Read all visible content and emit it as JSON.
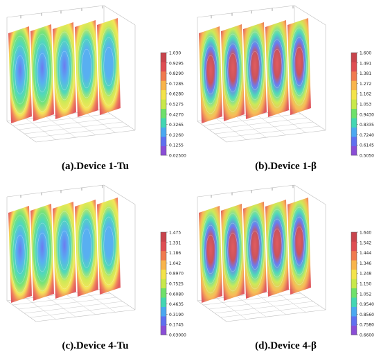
{
  "chart_data": [
    {
      "type": "heatmap",
      "title": "(a).Device 1-Tu",
      "colorbar_ticks": [
        "1.030",
        "0.9295",
        "0.8290",
        "0.7285",
        "0.6280",
        "0.5275",
        "0.4270",
        "0.3265",
        "0.2260",
        "0.1255",
        "0.02500"
      ],
      "vmin": 0.025,
      "vmax": 1.03,
      "slice_count": 5,
      "slice_pattern": "low",
      "colors": [
        "#8a4dd6",
        "#5f6ff0",
        "#4aa8f0",
        "#42d6b2",
        "#6ee06a",
        "#c8e84a",
        "#f3e34a",
        "#f8b44a",
        "#f07a4e",
        "#de4e52",
        "#c8444c"
      ]
    },
    {
      "type": "heatmap",
      "title": "(b).Device 1-β",
      "colorbar_ticks": [
        "1.600",
        "1.491",
        "1.381",
        "1.272",
        "1.162",
        "1.053",
        "0.9430",
        "0.8335",
        "0.7240",
        "0.6145",
        "0.5050"
      ],
      "vmin": 0.505,
      "vmax": 1.6,
      "slice_count": 5,
      "slice_pattern": "high",
      "colors": [
        "#8a4dd6",
        "#5f6ff0",
        "#4aa8f0",
        "#42d6b2",
        "#6ee06a",
        "#c8e84a",
        "#f3e34a",
        "#f8b44a",
        "#f07a4e",
        "#de4e52",
        "#c8444c"
      ]
    },
    {
      "type": "heatmap",
      "title": "(c).Device 4-Tu",
      "colorbar_ticks": [
        "1.475",
        "1.331",
        "1.186",
        "1.042",
        "0.8970",
        "0.7525",
        "0.6080",
        "0.4635",
        "0.3190",
        "0.1745",
        "0.03000"
      ],
      "vmin": 0.03,
      "vmax": 1.475,
      "slice_count": 5,
      "slice_pattern": "low",
      "colors": [
        "#8a4dd6",
        "#5f6ff0",
        "#4aa8f0",
        "#42d6b2",
        "#6ee06a",
        "#c8e84a",
        "#f3e34a",
        "#f8b44a",
        "#f07a4e",
        "#de4e52",
        "#c8444c"
      ]
    },
    {
      "type": "heatmap",
      "title": "(d).Device 4-β",
      "colorbar_ticks": [
        "1.640",
        "1.542",
        "1.444",
        "1.346",
        "1.248",
        "1.150",
        "1.052",
        "0.9540",
        "0.8560",
        "0.7580",
        "0.6600"
      ],
      "vmin": 0.66,
      "vmax": 1.64,
      "slice_count": 5,
      "slice_pattern": "high",
      "colors": [
        "#8a4dd6",
        "#5f6ff0",
        "#4aa8f0",
        "#42d6b2",
        "#6ee06a",
        "#c8e84a",
        "#f3e34a",
        "#f8b44a",
        "#f07a4e",
        "#de4e52",
        "#c8444c"
      ]
    }
  ]
}
